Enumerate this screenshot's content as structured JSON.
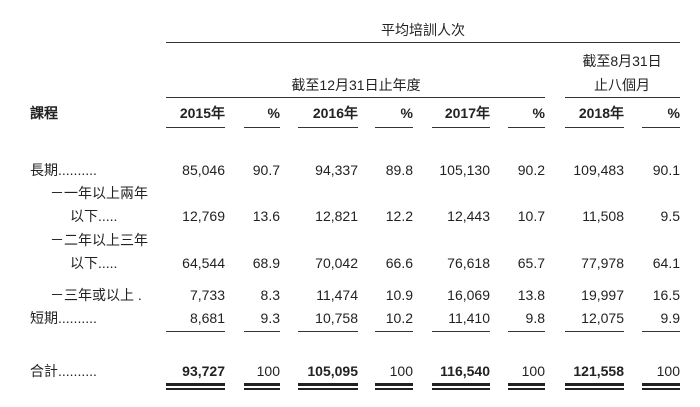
{
  "header": {
    "group_title": "平均培訓人次",
    "annual_title": "截至12月31日止年度",
    "interim_title_line1": "截至8月31日",
    "interim_title_line2": "止八個月",
    "columns": [
      "課程",
      "2015年",
      "%",
      "2016年",
      "%",
      "2017年",
      "%",
      "2018年",
      "%"
    ]
  },
  "rows": [
    {
      "label": "長期..........",
      "values": [
        "85,046",
        "90.7",
        "94,337",
        "89.8",
        "105,130",
        "90.2",
        "109,483",
        "90.1"
      ]
    },
    {
      "label": "－一年以上兩年",
      "values": []
    },
    {
      "label": "以下.....",
      "values": [
        "12,769",
        "13.6",
        "12,821",
        "12.2",
        "12,443",
        "10.7",
        "11,508",
        "9.5"
      ]
    },
    {
      "label": "－二年以上三年",
      "values": []
    },
    {
      "label": "以下.....",
      "values": [
        "64,544",
        "68.9",
        "70,042",
        "66.6",
        "76,618",
        "65.7",
        "77,978",
        "64.1"
      ]
    },
    {
      "label": "－三年或以上 .",
      "values": [
        "7,733",
        "8.3",
        "11,474",
        "10.9",
        "16,069",
        "13.8",
        "19,997",
        "16.5"
      ]
    },
    {
      "label": "短期..........",
      "values": [
        "8,681",
        "9.3",
        "10,758",
        "10.2",
        "11,410",
        "9.8",
        "12,075",
        "9.9"
      ]
    }
  ],
  "total": {
    "label": "合計..........",
    "values": [
      "93,727",
      "100",
      "105,095",
      "100",
      "116,540",
      "100",
      "121,558",
      "100"
    ]
  }
}
